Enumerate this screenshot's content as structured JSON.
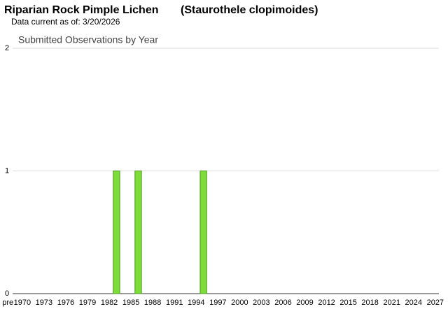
{
  "header": {
    "common_name": "Riparian Rock Pimple Lichen",
    "scientific_name": "(Staurothele clopimoides)",
    "data_current": "Data current as of: 3/20/2026"
  },
  "chart_data": {
    "type": "bar",
    "title": "Submitted Observations by Year",
    "categories": [
      "pre",
      null,
      "1970",
      null,
      null,
      "1973",
      null,
      null,
      "1976",
      null,
      null,
      "1979",
      null,
      null,
      "1982",
      null,
      null,
      "1985",
      null,
      null,
      "1988",
      null,
      null,
      "1991",
      null,
      null,
      "1994",
      null,
      null,
      "1997",
      null,
      null,
      "2000",
      null,
      null,
      "2003",
      null,
      null,
      "2006",
      null,
      null,
      "2009",
      null,
      null,
      "2012",
      null,
      null,
      "2015",
      null,
      null,
      "2018",
      null,
      null,
      "2021",
      null,
      null,
      "2024",
      null,
      null,
      "2027"
    ],
    "values": [
      0,
      0,
      0,
      0,
      0,
      0,
      0,
      0,
      0,
      0,
      0,
      0,
      0,
      0,
      0,
      1,
      0,
      0,
      1,
      0,
      0,
      0,
      0,
      0,
      0,
      0,
      0,
      1,
      0,
      0,
      0,
      0,
      0,
      0,
      0,
      0,
      0,
      0,
      0,
      0,
      0,
      0,
      0,
      0,
      0,
      0,
      0,
      0,
      0,
      0,
      0,
      0,
      0,
      0,
      0,
      0,
      0,
      0,
      0,
      0
    ],
    "color": "#7ddc3a",
    "ylim": [
      0,
      2
    ],
    "yticks": [
      0,
      1,
      2
    ],
    "grid": true
  }
}
